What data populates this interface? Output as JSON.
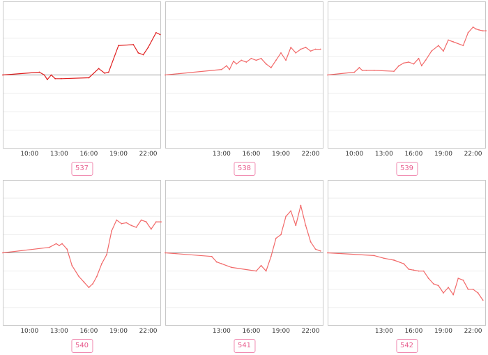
{
  "colors": {
    "line_dark": "#e02020",
    "line_light": "#f26a6a",
    "badge_text": "#e85a8c",
    "badge_border": "#f08ab0",
    "frame": "#c8c8c8",
    "grid": "#eeeeee",
    "baseline": "#999999"
  },
  "chart_data": [
    {
      "type": "line",
      "id": "537",
      "color": "line_dark",
      "x_ticks": [
        "10:00",
        "13:00",
        "16:00",
        "19:00",
        "22:00"
      ],
      "x_range": [
        7.3,
        23.3
      ],
      "ylim": [
        -4,
        4
      ],
      "series": [
        {
          "x": [
            7.3,
            11.0,
            11.5,
            11.8,
            12.2,
            12.6,
            13.2,
            16.0,
            17.0,
            17.6,
            18.0,
            19.0,
            20.5,
            21.0,
            21.5,
            22.0,
            22.8,
            23.2
          ],
          "y": [
            0,
            0.15,
            0.0,
            -0.25,
            0.0,
            -0.2,
            -0.2,
            -0.15,
            0.35,
            0.1,
            0.15,
            1.6,
            1.65,
            1.2,
            1.1,
            1.5,
            2.3,
            2.2
          ]
        }
      ]
    },
    {
      "type": "line",
      "id": "538",
      "color": "line_light",
      "x_ticks": [
        "13:00",
        "16:00",
        "19:00",
        "22:00"
      ],
      "x_range": [
        7.3,
        23.3
      ],
      "ylim": [
        -4,
        4
      ],
      "series": [
        {
          "x": [
            7.3,
            13.0,
            13.5,
            13.8,
            14.2,
            14.5,
            15.0,
            15.5,
            16.0,
            16.5,
            17.0,
            17.5,
            18.0,
            18.5,
            19.0,
            19.5,
            20.0,
            20.5,
            21.0,
            21.5,
            22.0,
            22.5,
            23.0
          ],
          "y": [
            0,
            0.3,
            0.5,
            0.3,
            0.75,
            0.6,
            0.8,
            0.7,
            0.9,
            0.8,
            0.9,
            0.6,
            0.4,
            0.8,
            1.2,
            0.8,
            1.5,
            1.2,
            1.4,
            1.5,
            1.3,
            1.4,
            1.4
          ]
        }
      ]
    },
    {
      "type": "line",
      "id": "539",
      "color": "line_light",
      "x_ticks": [
        "10:00",
        "13:00",
        "16:00",
        "19:00",
        "22:00"
      ],
      "x_range": [
        7.3,
        23.3
      ],
      "ylim": [
        -4,
        4
      ],
      "series": [
        {
          "x": [
            7.3,
            10.0,
            10.5,
            10.8,
            11.2,
            12.0,
            14.0,
            14.5,
            15.0,
            15.5,
            16.0,
            16.5,
            16.8,
            17.2,
            17.8,
            18.5,
            19.0,
            19.5,
            20.0,
            21.0,
            21.5,
            22.0,
            22.3,
            22.6,
            23.0,
            23.3
          ],
          "y": [
            0,
            0.15,
            0.4,
            0.25,
            0.25,
            0.25,
            0.2,
            0.5,
            0.65,
            0.7,
            0.6,
            0.9,
            0.5,
            0.8,
            1.3,
            1.6,
            1.3,
            1.9,
            1.8,
            1.6,
            2.3,
            2.6,
            2.5,
            2.45,
            2.4,
            2.4
          ]
        }
      ]
    },
    {
      "type": "line",
      "id": "540",
      "color": "line_light",
      "x_ticks": [
        "10:00",
        "13:00",
        "16:00",
        "19:00",
        "22:00"
      ],
      "x_range": [
        7.3,
        23.3
      ],
      "ylim": [
        -4,
        4
      ],
      "series": [
        {
          "x": [
            7.3,
            12.0,
            12.7,
            13.0,
            13.3,
            13.8,
            14.3,
            15.0,
            15.5,
            16.0,
            16.4,
            16.8,
            17.3,
            17.8,
            18.3,
            18.8,
            19.3,
            19.8,
            20.3,
            20.8,
            21.3,
            21.8,
            22.3,
            22.8,
            23.3
          ],
          "y": [
            0,
            0.3,
            0.5,
            0.4,
            0.5,
            0.2,
            -0.7,
            -1.3,
            -1.6,
            -1.9,
            -1.7,
            -1.3,
            -0.6,
            -0.1,
            1.2,
            1.8,
            1.6,
            1.65,
            1.5,
            1.4,
            1.8,
            1.7,
            1.3,
            1.7,
            1.7
          ]
        }
      ]
    },
    {
      "type": "line",
      "id": "541",
      "color": "line_light",
      "x_ticks": [
        "13:00",
        "16:00",
        "19:00",
        "22:00"
      ],
      "x_range": [
        7.3,
        23.3
      ],
      "ylim": [
        -4,
        4
      ],
      "series": [
        {
          "x": [
            7.3,
            12.0,
            12.5,
            13.0,
            14.0,
            16.5,
            17.0,
            17.5,
            18.0,
            18.5,
            19.0,
            19.5,
            20.0,
            20.5,
            21.0,
            21.5,
            22.0,
            22.5,
            23.0
          ],
          "y": [
            0,
            -0.2,
            -0.5,
            -0.6,
            -0.8,
            -1.0,
            -0.7,
            -1.0,
            -0.2,
            0.8,
            1.0,
            2.0,
            2.3,
            1.5,
            2.6,
            1.5,
            0.6,
            0.2,
            0.1
          ]
        }
      ]
    },
    {
      "type": "line",
      "id": "542",
      "color": "line_light",
      "x_ticks": [
        "13:00",
        "16:00",
        "19:00",
        "22:00"
      ],
      "x_range": [
        7.3,
        23.3
      ],
      "ylim": [
        -4,
        4
      ],
      "series": [
        {
          "x": [
            7.3,
            12.0,
            13.0,
            14.0,
            15.0,
            15.5,
            16.0,
            16.5,
            17.0,
            17.5,
            18.0,
            18.5,
            19.0,
            19.5,
            20.0,
            20.5,
            21.0,
            21.5,
            22.0,
            22.5,
            23.0
          ],
          "y": [
            0,
            -0.15,
            -0.3,
            -0.4,
            -0.6,
            -0.9,
            -0.95,
            -1.0,
            -1.0,
            -1.4,
            -1.7,
            -1.8,
            -2.2,
            -1.9,
            -2.3,
            -1.4,
            -1.5,
            -2.0,
            -2.0,
            -2.2,
            -2.6
          ]
        }
      ]
    }
  ]
}
